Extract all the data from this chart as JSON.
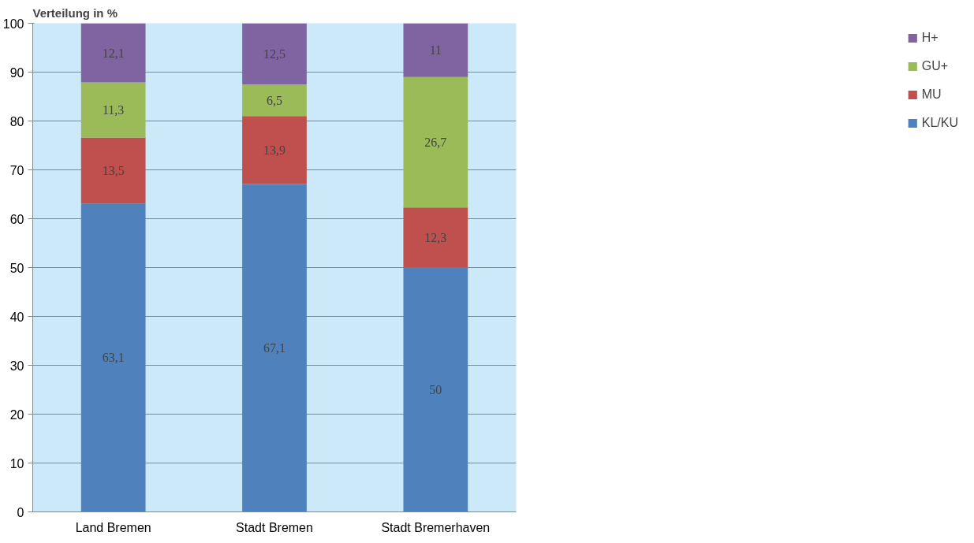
{
  "chart_data": {
    "type": "bar",
    "stacked": true,
    "title": "Verteilung in %",
    "categories": [
      "Land Bremen",
      "Stadt Bremen",
      "Stadt Bremerhaven"
    ],
    "series": [
      {
        "name": "KL/KU",
        "color": "#4f81bd",
        "values": [
          63.1,
          67.1,
          50
        ],
        "value_labels": [
          "63,1",
          "67,1",
          "50"
        ]
      },
      {
        "name": "MU",
        "color": "#c0504d",
        "values": [
          13.5,
          13.9,
          12.3
        ],
        "value_labels": [
          "13,5",
          "13,9",
          "12,3"
        ]
      },
      {
        "name": "GU+",
        "color": "#9bbb59",
        "values": [
          11.3,
          6.5,
          26.7
        ],
        "value_labels": [
          "11,3",
          "6,5",
          "26,7"
        ]
      },
      {
        "name": "H+",
        "color": "#8064a2",
        "values": [
          12.1,
          12.5,
          11
        ],
        "value_labels": [
          "12,1",
          "12,5",
          "11"
        ]
      }
    ],
    "ylim": [
      0,
      100
    ],
    "yticks": [
      0,
      10,
      20,
      30,
      40,
      50,
      60,
      70,
      80,
      90,
      100
    ],
    "grid": "y",
    "legend": "right"
  }
}
